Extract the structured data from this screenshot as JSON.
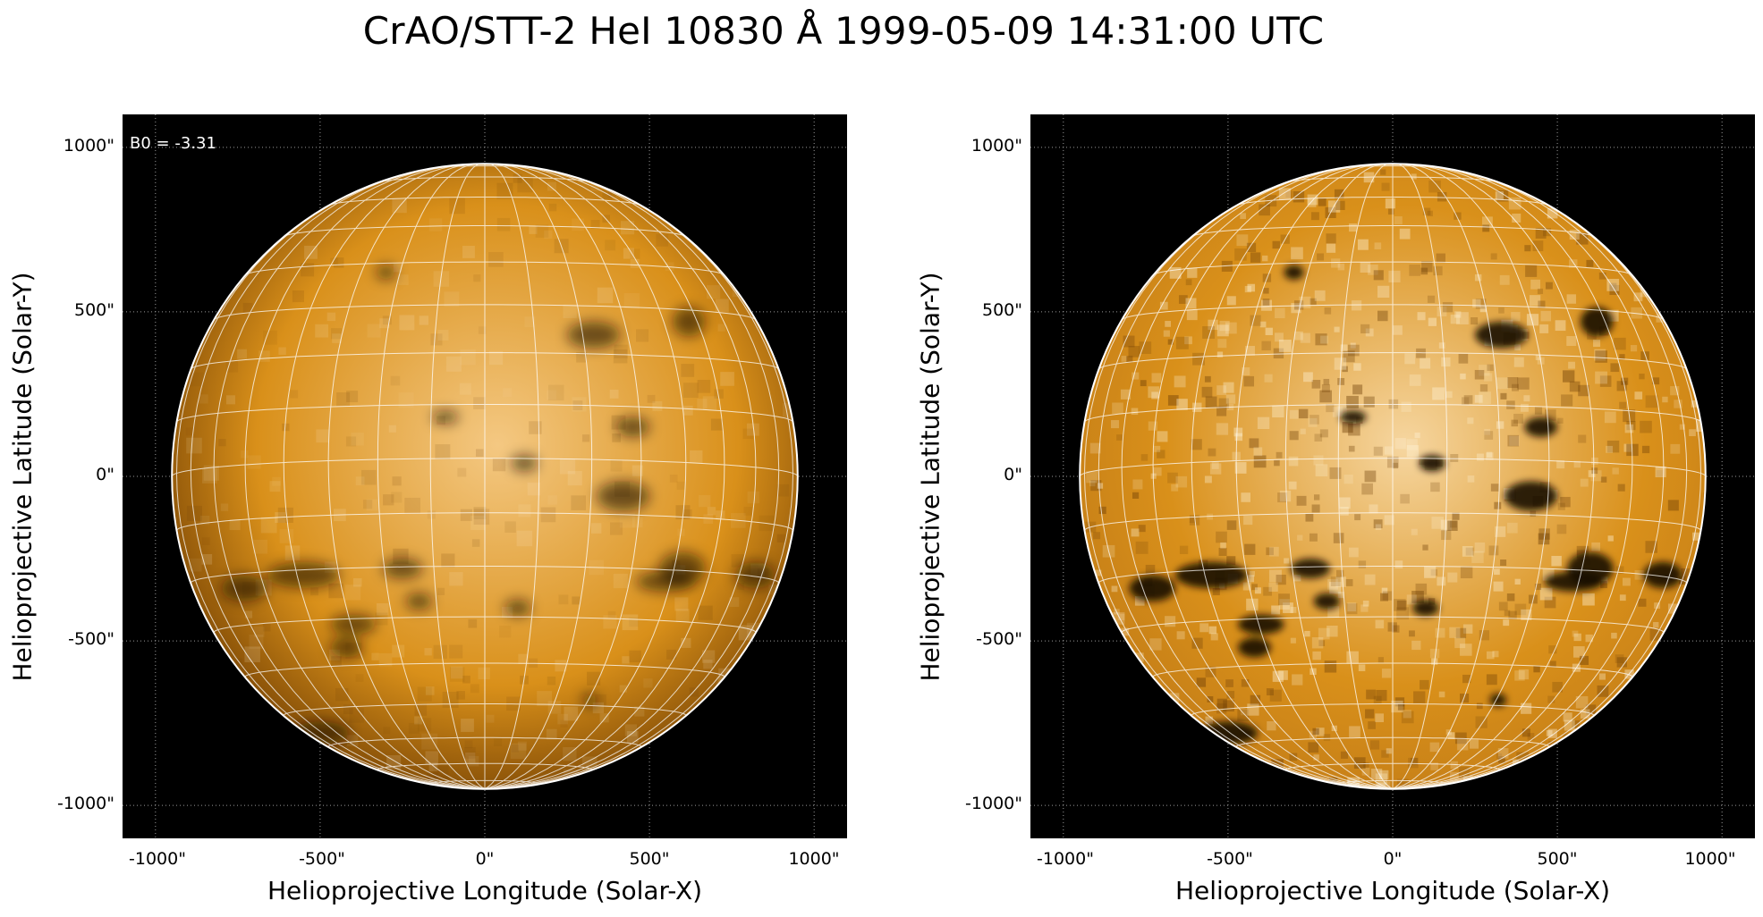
{
  "figure": {
    "title": "CrAO/STT-2 HeI 10830 Å 1999-05-09 14:31:00 UTC"
  },
  "panels": [
    {
      "id": "left",
      "annotation": "B0 = -3.31",
      "xlabel": "Helioprojective Longitude (Solar-X)",
      "ylabel": "Helioprojective Latitude (Solar-Y)",
      "xticks": [
        "-1000\"",
        "-500\"",
        "0\"",
        "500\"",
        "1000\""
      ],
      "yticks": [
        "1000\"",
        "500\"",
        "0\"",
        "-500\"",
        "-1000\""
      ],
      "colormap": "hot-orange",
      "style": "smooth"
    },
    {
      "id": "right",
      "annotation": "",
      "xlabel": "Helioprojective Longitude (Solar-X)",
      "ylabel": "Helioprojective Latitude (Solar-Y)",
      "xticks": [
        "-1000\"",
        "-500\"",
        "0\"",
        "500\"",
        "1000\""
      ],
      "yticks": [
        "1000\"",
        "500\"",
        "0\"",
        "-500\"",
        "-1000\""
      ],
      "colormap": "hot-orange",
      "style": "enhanced"
    }
  ],
  "axes": {
    "xlim": [
      -1100,
      1100
    ],
    "ylim": [
      -1100,
      1100
    ],
    "tick_values": [
      -1000,
      -500,
      0,
      500,
      1000
    ],
    "solar_radius_arcsec": 950,
    "grid": "dotted"
  },
  "colors": {
    "disk_base": "#d9901a",
    "disk_bright": "#f4c882",
    "disk_limb": "#8a5208",
    "dark_feature": "#1a0e02",
    "grid_line": "#ffffff",
    "background": "#000000"
  }
}
